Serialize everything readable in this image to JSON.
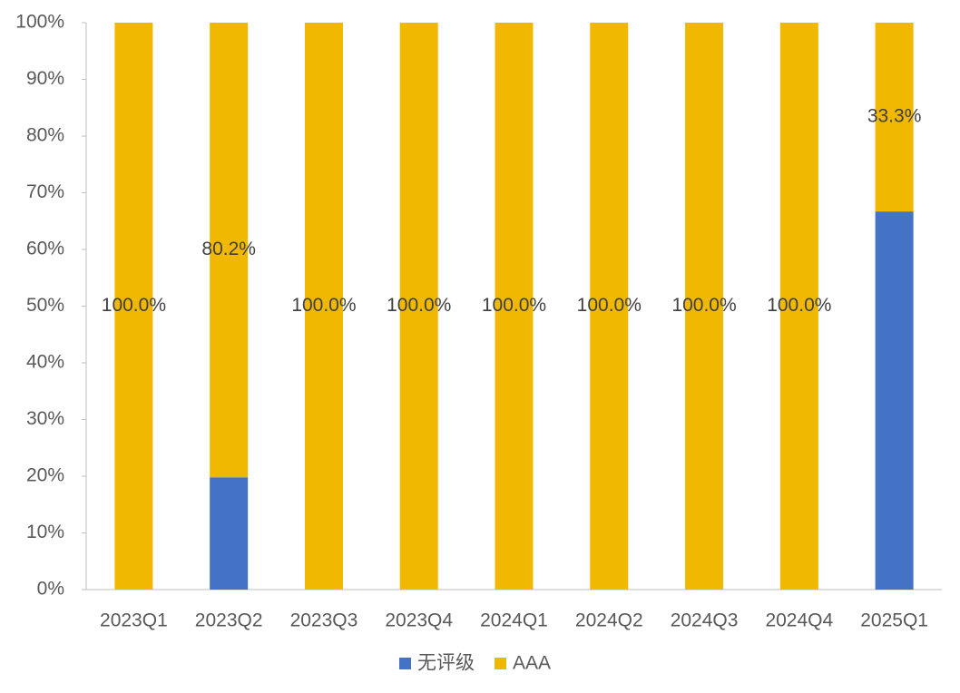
{
  "chart_data": {
    "type": "stacked-bar",
    "categories": [
      "2023Q1",
      "2023Q2",
      "2023Q3",
      "2023Q4",
      "2024Q1",
      "2024Q2",
      "2024Q3",
      "2024Q4",
      "2025Q1"
    ],
    "series": [
      {
        "name": "无评级",
        "color": "#4472c4",
        "values": [
          0,
          19.8,
          0,
          0,
          0,
          0,
          0,
          0,
          66.7
        ]
      },
      {
        "name": "AAA",
        "color": "#f0b800",
        "values": [
          100,
          80.2,
          100,
          100,
          100,
          100,
          100,
          100,
          33.3
        ],
        "value_labels": [
          "100.0%",
          "80.2%",
          "100.0%",
          "100.0%",
          "100.0%",
          "100.0%",
          "100.0%",
          "100.0%",
          "33.3%"
        ]
      }
    ],
    "ylim": [
      0,
      100
    ],
    "yticks": [
      {
        "value": 0,
        "label": "0%"
      },
      {
        "value": 10,
        "label": "10%"
      },
      {
        "value": 20,
        "label": "20%"
      },
      {
        "value": 30,
        "label": "30%"
      },
      {
        "value": 40,
        "label": "40%"
      },
      {
        "value": 50,
        "label": "50%"
      },
      {
        "value": 60,
        "label": "60%"
      },
      {
        "value": 70,
        "label": "70%"
      },
      {
        "value": 80,
        "label": "80%"
      },
      {
        "value": 90,
        "label": "90%"
      },
      {
        "value": 100,
        "label": "100%"
      }
    ],
    "legend": "bottom"
  }
}
